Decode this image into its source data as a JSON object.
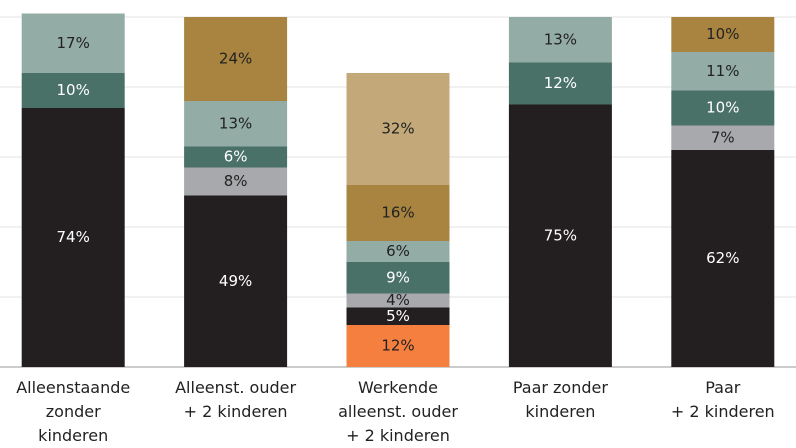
{
  "chart_data": {
    "type": "stacked_bar",
    "categories": [
      "Alleenstaande\nzonder\nkinderen",
      "Alleenst. ouder\n+ 2 kinderen",
      "Werkende\nalleenst. ouder\n+ 2 kinderen",
      "Paar zonder\nkinderen",
      "Paar\n+ 2 kinderen"
    ],
    "ylim": [
      0,
      100
    ],
    "yticks": [
      0,
      20,
      40,
      60,
      80,
      100
    ],
    "grid": true,
    "series": [
      {
        "color": "#f47f3f",
        "values": [
          null,
          null,
          12,
          null,
          null
        ],
        "value_labels": [
          null,
          null,
          "12%",
          null,
          null
        ]
      },
      {
        "color": "#231f20",
        "values": [
          74,
          49,
          5,
          75,
          62
        ],
        "value_labels": [
          "74%",
          "49%",
          "5%",
          "75%",
          "62%"
        ]
      },
      {
        "color": "#a7a9ac",
        "values": [
          null,
          8,
          4,
          null,
          7
        ],
        "value_labels": [
          null,
          "8%",
          "4%",
          null,
          "7%"
        ]
      },
      {
        "color": "#4a7168",
        "values": [
          10,
          6,
          9,
          12,
          10
        ],
        "value_labels": [
          "10%",
          "6%",
          "9%",
          "12%",
          "10%"
        ]
      },
      {
        "color": "#94aca6",
        "values": [
          17,
          13,
          6,
          13,
          11
        ],
        "value_labels": [
          "17%",
          "13%",
          "6%",
          "13%",
          "11%"
        ]
      },
      {
        "color": "#a88440",
        "values": [
          null,
          24,
          16,
          null,
          10
        ],
        "value_labels": [
          null,
          "24%",
          "16%",
          null,
          "10%"
        ]
      },
      {
        "color": "#c3a97a",
        "values": [
          null,
          null,
          32,
          null,
          null
        ],
        "value_labels": [
          null,
          null,
          "32%",
          null,
          null
        ]
      }
    ]
  }
}
